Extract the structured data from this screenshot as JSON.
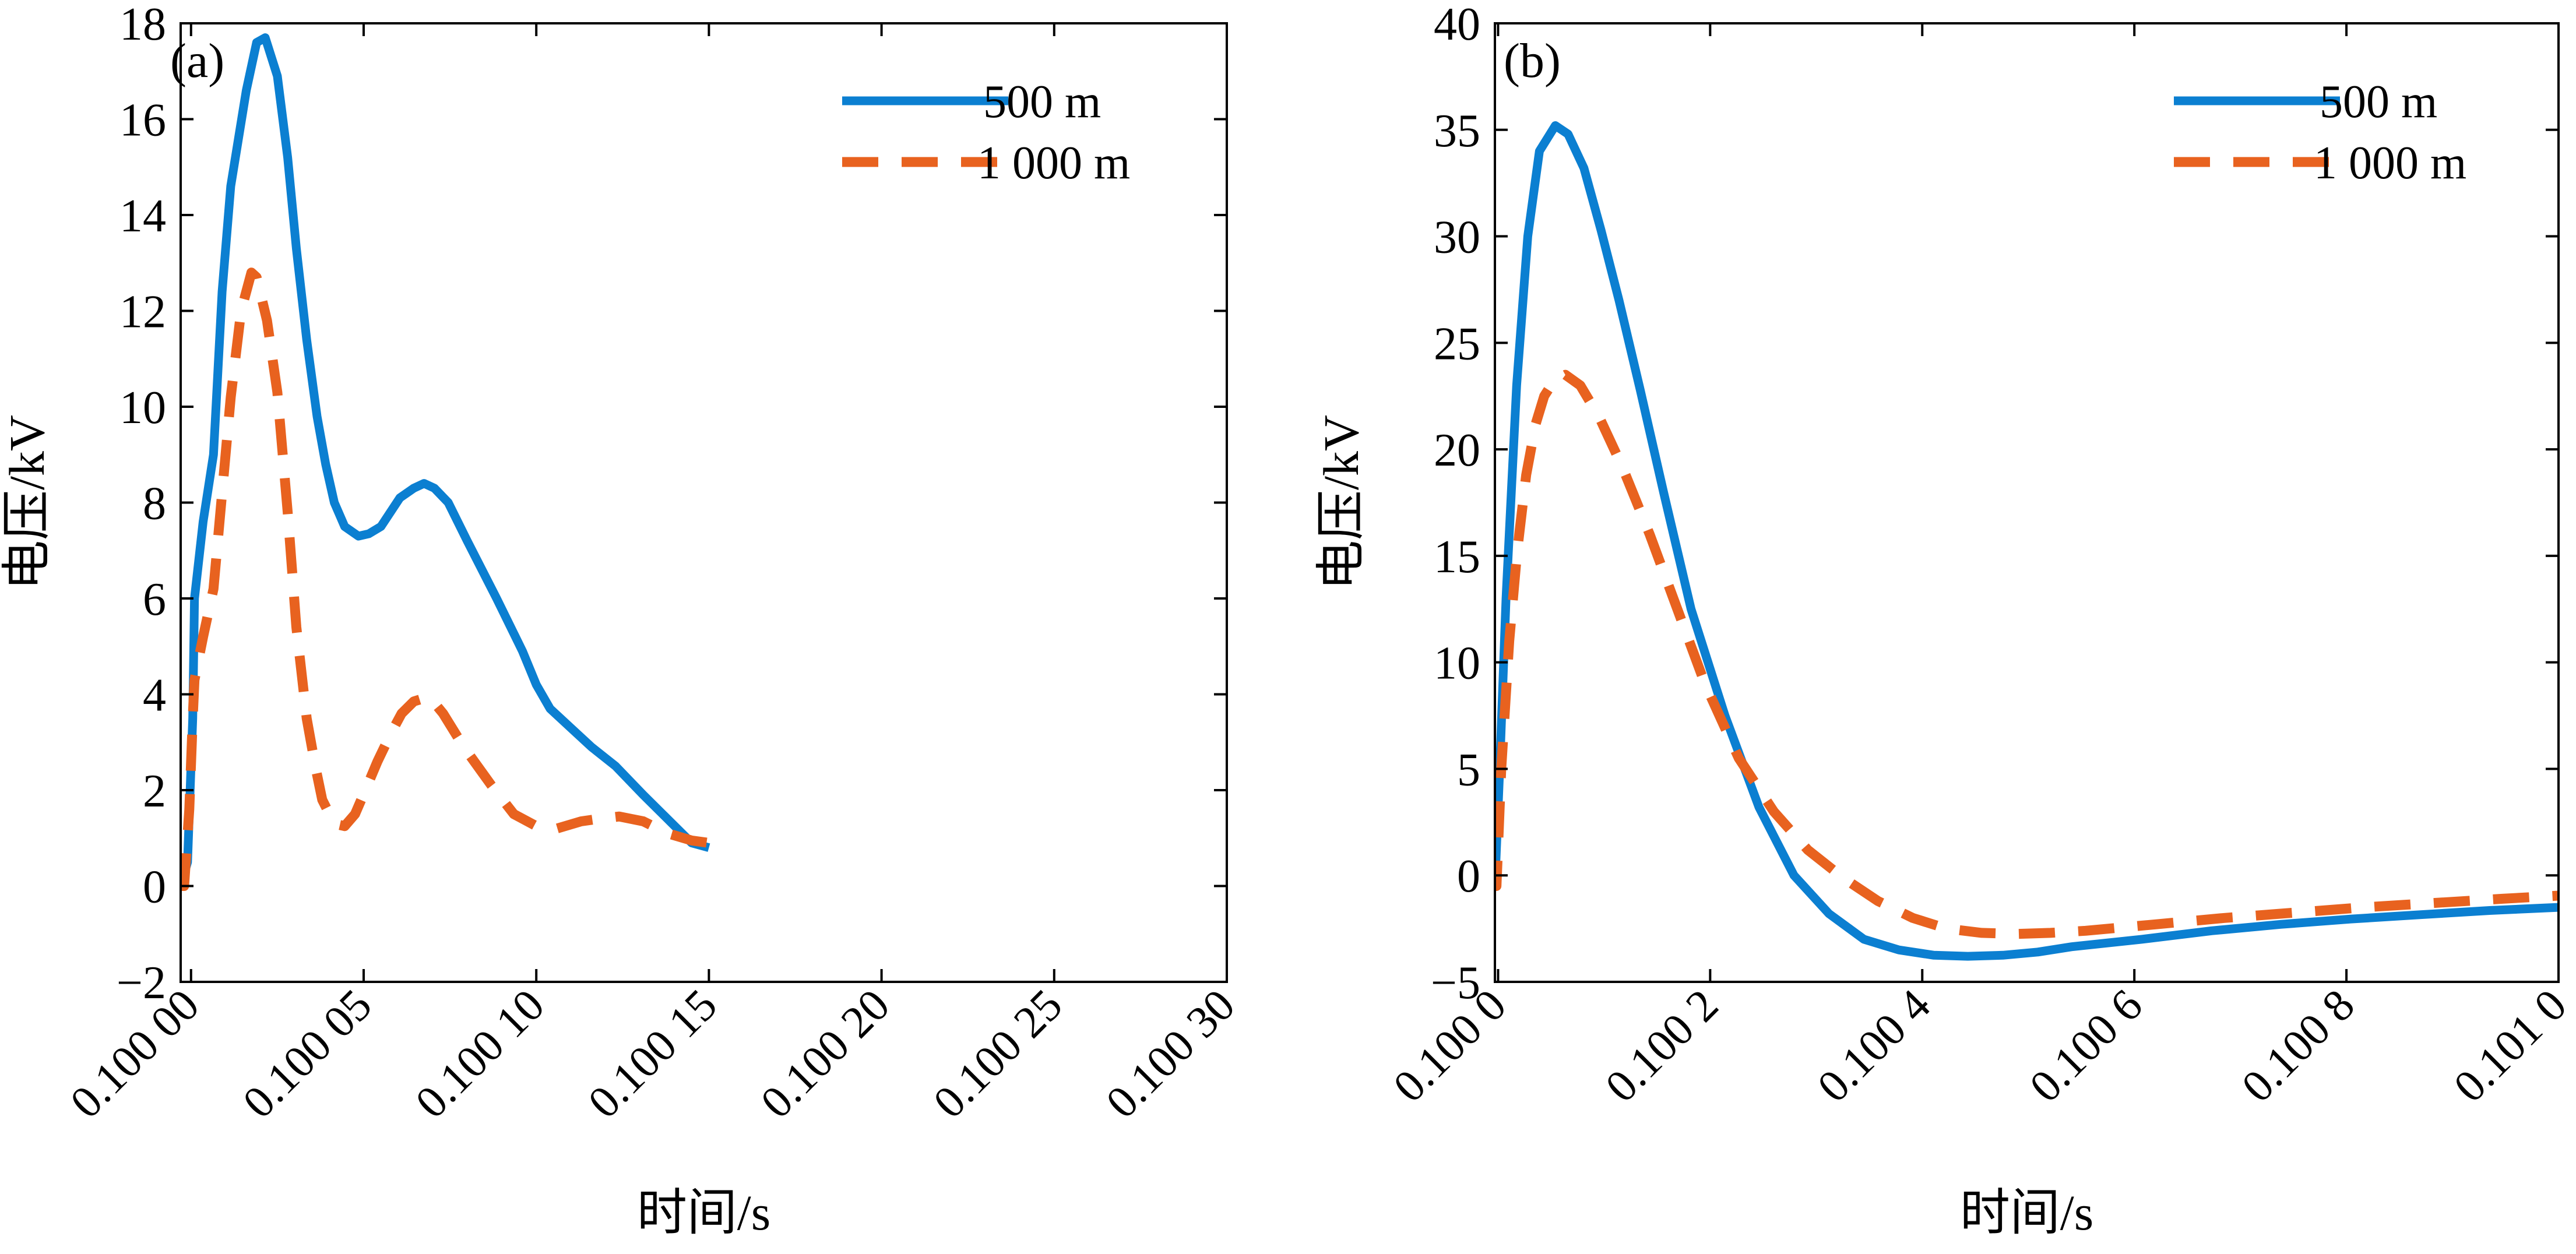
{
  "chart_data": [
    {
      "type": "line",
      "panel_label": "(a)",
      "xlabel": "时间/s",
      "ylabel": "电压/kV",
      "xlim": [
        0.099997,
        0.1003
      ],
      "ylim": [
        -2,
        18
      ],
      "x_ticks": [
        0.1,
        0.10005,
        0.1001,
        0.10015,
        0.1002,
        0.10025,
        0.1003
      ],
      "x_tick_labels": [
        "0.100 00",
        "0.100 05",
        "0.100 10",
        "0.100 15",
        "0.100 20",
        "0.100 25",
        "0.100 30"
      ],
      "y_ticks": [
        -2,
        0,
        2,
        4,
        6,
        8,
        10,
        12,
        14,
        16,
        18
      ],
      "y_tick_labels": [
        "−2",
        "0",
        "2",
        "4",
        "6",
        "8",
        "10",
        "12",
        "14",
        "16",
        "18"
      ],
      "grid": false,
      "legend_position": "top-right",
      "series": [
        {
          "name": "500 m",
          "color": "#0b7fd1",
          "style": "solid",
          "points": [
            [
              0.099997,
              0.0
            ],
            [
              0.099999,
              0.5
            ],
            [
              0.1000005,
              3.5
            ],
            [
              0.100001,
              6.0
            ],
            [
              0.1000035,
              7.6
            ],
            [
              0.1000065,
              9.0
            ],
            [
              0.100009,
              12.4
            ],
            [
              0.1000115,
              14.6
            ],
            [
              0.100016,
              16.6
            ],
            [
              0.100019,
              17.6
            ],
            [
              0.1000215,
              17.7
            ],
            [
              0.100025,
              16.9
            ],
            [
              0.100028,
              15.2
            ],
            [
              0.1000305,
              13.3
            ],
            [
              0.1000335,
              11.4
            ],
            [
              0.1000365,
              9.8
            ],
            [
              0.100039,
              8.8
            ],
            [
              0.1000415,
              8.0
            ],
            [
              0.1000445,
              7.5
            ],
            [
              0.1000485,
              7.3
            ],
            [
              0.1000515,
              7.35
            ],
            [
              0.100055,
              7.5
            ],
            [
              0.1000605,
              8.1
            ],
            [
              0.1000645,
              8.3
            ],
            [
              0.1000675,
              8.4
            ],
            [
              0.1000705,
              8.3
            ],
            [
              0.1000745,
              8.0
            ],
            [
              0.10008,
              7.2
            ],
            [
              0.1000885,
              6.0
            ],
            [
              0.100096,
              4.9
            ],
            [
              0.1001,
              4.2
            ],
            [
              0.100104,
              3.7
            ],
            [
              0.10011,
              3.3
            ],
            [
              0.100116,
              2.9
            ],
            [
              0.100123,
              2.5
            ],
            [
              0.100131,
              1.9
            ],
            [
              0.100138,
              1.4
            ],
            [
              0.100145,
              0.9
            ],
            [
              0.10015,
              0.8
            ]
          ]
        },
        {
          "name": "1 000 m",
          "color": "#e8621f",
          "style": "dashed",
          "points": [
            [
              0.099997,
              0.0
            ],
            [
              0.099998,
              0.0
            ],
            [
              0.0999995,
              1.6
            ],
            [
              0.1000005,
              3.5
            ],
            [
              0.100001,
              4.3
            ],
            [
              0.1000035,
              5.2
            ],
            [
              0.1000065,
              6.2
            ],
            [
              0.100009,
              8.2
            ],
            [
              0.1000115,
              10.2
            ],
            [
              0.1000145,
              12.0
            ],
            [
              0.1000175,
              12.8
            ],
            [
              0.100019,
              12.7
            ],
            [
              0.100022,
              11.8
            ],
            [
              0.100025,
              10.3
            ],
            [
              0.100028,
              7.8
            ],
            [
              0.1000305,
              5.4
            ],
            [
              0.1000335,
              3.5
            ],
            [
              0.100036,
              2.5
            ],
            [
              0.100038,
              1.8
            ],
            [
              0.1000415,
              1.3
            ],
            [
              0.1000445,
              1.25
            ],
            [
              0.1000475,
              1.5
            ],
            [
              0.1000505,
              2.0
            ],
            [
              0.100054,
              2.6
            ],
            [
              0.100058,
              3.2
            ],
            [
              0.100061,
              3.6
            ],
            [
              0.1000645,
              3.85
            ],
            [
              0.100069,
              3.95
            ],
            [
              0.100073,
              3.6
            ],
            [
              0.100079,
              2.9
            ],
            [
              0.100087,
              2.1
            ],
            [
              0.1000935,
              1.5
            ],
            [
              0.1001,
              1.25
            ],
            [
              0.100106,
              1.2
            ],
            [
              0.100113,
              1.35
            ],
            [
              0.100118,
              1.4
            ],
            [
              0.100124,
              1.45
            ],
            [
              0.100131,
              1.35
            ],
            [
              0.100138,
              1.1
            ],
            [
              0.100145,
              0.95
            ],
            [
              0.10015,
              0.9
            ]
          ]
        }
      ]
    },
    {
      "type": "line",
      "panel_label": "(b)",
      "xlabel": "时间/s",
      "ylabel": "电压/kV",
      "xlim": [
        0.099997,
        0.101
      ],
      "ylim": [
        -5,
        40
      ],
      "x_ticks": [
        0.1,
        0.1002,
        0.1004,
        0.1006,
        0.1008,
        0.101
      ],
      "x_tick_labels": [
        "0.100 0",
        "0.100 2",
        "0.100 4",
        "0.100 6",
        "0.100 8",
        "0.101 0"
      ],
      "y_ticks": [
        -5,
        0,
        5,
        10,
        15,
        20,
        25,
        30,
        35,
        40
      ],
      "y_tick_labels": [
        "−5",
        "0",
        "5",
        "10",
        "15",
        "20",
        "25",
        "30",
        "35",
        "40"
      ],
      "grid": false,
      "legend_position": "top-right",
      "series": [
        {
          "name": "500 m",
          "color": "#0b7fd1",
          "style": "solid",
          "points": [
            [
              0.099997,
              -0.5
            ],
            [
              0.1000015,
              5.0
            ],
            [
              0.1000075,
              13.0
            ],
            [
              0.1000175,
              23.0
            ],
            [
              0.100028,
              30.0
            ],
            [
              0.100039,
              34.0
            ],
            [
              0.100054,
              35.2
            ],
            [
              0.100066,
              34.8
            ],
            [
              0.100081,
              33.2
            ],
            [
              0.100097,
              30.3
            ],
            [
              0.100114,
              27.0
            ],
            [
              0.100134,
              22.8
            ],
            [
              0.100156,
              18.0
            ],
            [
              0.100182,
              12.5
            ],
            [
              0.100214,
              7.5
            ],
            [
              0.100246,
              3.2
            ],
            [
              0.100279,
              0.0
            ],
            [
              0.100312,
              -1.8
            ],
            [
              0.100345,
              -3.0
            ],
            [
              0.100378,
              -3.5
            ],
            [
              0.100411,
              -3.75
            ],
            [
              0.100443,
              -3.8
            ],
            [
              0.100476,
              -3.75
            ],
            [
              0.100509,
              -3.6
            ],
            [
              0.100541,
              -3.35
            ],
            [
              0.100607,
              -3.0
            ],
            [
              0.100673,
              -2.6
            ],
            [
              0.100738,
              -2.3
            ],
            [
              0.100804,
              -2.05
            ],
            [
              0.100869,
              -1.85
            ],
            [
              0.100935,
              -1.65
            ],
            [
              0.101,
              -1.5
            ]
          ]
        },
        {
          "name": "1 000 m",
          "color": "#e8621f",
          "style": "dashed",
          "points": [
            [
              0.099997,
              0.0
            ],
            [
              0.0999985,
              -0.5
            ],
            [
              0.100003,
              5.0
            ],
            [
              0.1000105,
              11.0
            ],
            [
              0.100018,
              15.2
            ],
            [
              0.1000265,
              18.8
            ],
            [
              0.1000355,
              21.2
            ],
            [
              0.1000435,
              22.5
            ],
            [
              0.1000525,
              23.2
            ],
            [
              0.1000635,
              23.5
            ],
            [
              0.1000775,
              23.0
            ],
            [
              0.1000955,
              21.5
            ],
            [
              0.100117,
              19.2
            ],
            [
              0.100143,
              16.0
            ],
            [
              0.100169,
              12.5
            ],
            [
              0.100195,
              9.0
            ],
            [
              0.100227,
              5.5
            ],
            [
              0.10026,
              3.0
            ],
            [
              0.100292,
              1.2
            ],
            [
              0.100325,
              -0.1
            ],
            [
              0.100358,
              -1.2
            ],
            [
              0.100391,
              -2.0
            ],
            [
              0.100423,
              -2.5
            ],
            [
              0.100456,
              -2.7
            ],
            [
              0.100489,
              -2.75
            ],
            [
              0.100521,
              -2.7
            ],
            [
              0.100554,
              -2.6
            ],
            [
              0.100587,
              -2.45
            ],
            [
              0.10062,
              -2.3
            ],
            [
              0.100685,
              -2.0
            ],
            [
              0.100751,
              -1.75
            ],
            [
              0.100816,
              -1.5
            ],
            [
              0.100882,
              -1.3
            ],
            [
              0.100947,
              -1.1
            ],
            [
              0.101,
              -0.95
            ]
          ]
        }
      ]
    }
  ]
}
